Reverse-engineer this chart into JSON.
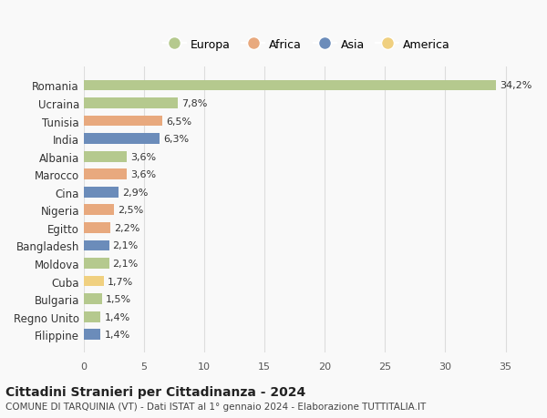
{
  "countries": [
    "Romania",
    "Ucraina",
    "Tunisia",
    "India",
    "Albania",
    "Marocco",
    "Cina",
    "Nigeria",
    "Egitto",
    "Bangladesh",
    "Moldova",
    "Cuba",
    "Bulgaria",
    "Regno Unito",
    "Filippine"
  ],
  "values": [
    34.2,
    7.8,
    6.5,
    6.3,
    3.6,
    3.6,
    2.9,
    2.5,
    2.2,
    2.1,
    2.1,
    1.7,
    1.5,
    1.4,
    1.4
  ],
  "labels": [
    "34,2%",
    "7,8%",
    "6,5%",
    "6,3%",
    "3,6%",
    "3,6%",
    "2,9%",
    "2,5%",
    "2,2%",
    "2,1%",
    "2,1%",
    "1,7%",
    "1,5%",
    "1,4%",
    "1,4%"
  ],
  "continents": [
    "Europa",
    "Europa",
    "Africa",
    "Asia",
    "Europa",
    "Africa",
    "Asia",
    "Africa",
    "Africa",
    "Asia",
    "Europa",
    "America",
    "Europa",
    "Europa",
    "Asia"
  ],
  "colors": {
    "Europa": "#b5c98e",
    "Africa": "#e8a97e",
    "Asia": "#6b8cba",
    "America": "#f0d080"
  },
  "legend_entries": [
    "Europa",
    "Africa",
    "Asia",
    "America"
  ],
  "title": "Cittadini Stranieri per Cittadinanza - 2024",
  "subtitle": "COMUNE DI TARQUINIA (VT) - Dati ISTAT al 1° gennaio 2024 - Elaborazione TUTTITALIA.IT",
  "xlim": [
    0,
    37
  ],
  "xticks": [
    0,
    5,
    10,
    15,
    20,
    25,
    30,
    35
  ],
  "background_color": "#f9f9f9",
  "grid_color": "#dddddd"
}
